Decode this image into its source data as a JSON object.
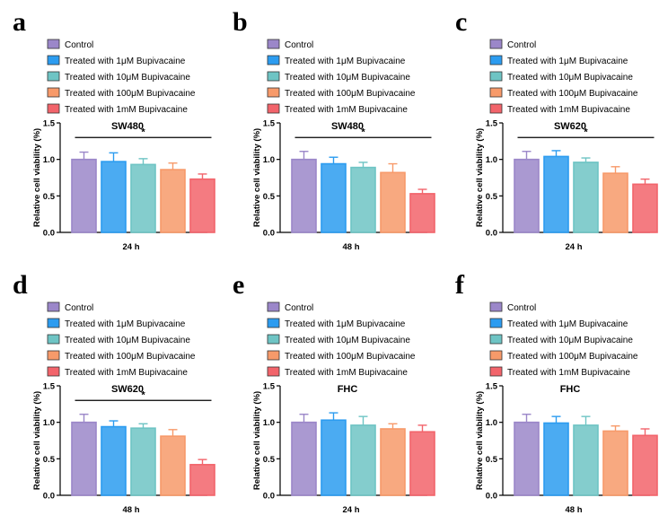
{
  "colors": {
    "Control": "#9b87c9",
    "Treated with 1μM Bupivacaine": "#2c9cf0",
    "Treated with 10μM Bupivacaine": "#6ec4c4",
    "Treated with 100μM Bupivacaine": "#f79a6a",
    "Treated with 1mM Bupivacaine": "#f2646b"
  },
  "chart_data": [
    {
      "panel": "a",
      "type": "bar",
      "title": "SW480",
      "xlabel": "24 h",
      "ylabel": "Relative cell viability (%)",
      "ylim": [
        0,
        1.5
      ],
      "yticks": [
        "0.0",
        "0.5",
        "1.0",
        "1.5"
      ],
      "significance": "*",
      "series": [
        {
          "name": "Control",
          "value": 1.0,
          "error": 0.1
        },
        {
          "name": "Treated with 1μM Bupivacaine",
          "value": 0.97,
          "error": 0.12
        },
        {
          "name": "Treated with 10μM Bupivacaine",
          "value": 0.93,
          "error": 0.08
        },
        {
          "name": "Treated with 100μM Bupivacaine",
          "value": 0.86,
          "error": 0.09
        },
        {
          "name": "Treated with 1mM Bupivacaine",
          "value": 0.73,
          "error": 0.07
        }
      ]
    },
    {
      "panel": "b",
      "type": "bar",
      "title": "SW480",
      "xlabel": "48 h",
      "ylabel": "Relative cell viability (%)",
      "ylim": [
        0,
        1.5
      ],
      "yticks": [
        "0.0",
        "0.5",
        "1.0",
        "1.5"
      ],
      "significance": "*",
      "series": [
        {
          "name": "Control",
          "value": 1.0,
          "error": 0.11
        },
        {
          "name": "Treated with 1μM Bupivacaine",
          "value": 0.94,
          "error": 0.09
        },
        {
          "name": "Treated with 10μM Bupivacaine",
          "value": 0.89,
          "error": 0.07
        },
        {
          "name": "Treated with 100μM Bupivacaine",
          "value": 0.82,
          "error": 0.12
        },
        {
          "name": "Treated with 1mM Bupivacaine",
          "value": 0.53,
          "error": 0.06
        }
      ]
    },
    {
      "panel": "c",
      "type": "bar",
      "title": "SW620",
      "xlabel": "24 h",
      "ylabel": "Relative cell viability (%)",
      "ylim": [
        0,
        1.5
      ],
      "yticks": [
        "0.0",
        "0.5",
        "1.0",
        "1.5"
      ],
      "significance": "*",
      "series": [
        {
          "name": "Control",
          "value": 1.0,
          "error": 0.11
        },
        {
          "name": "Treated with 1μM Bupivacaine",
          "value": 1.04,
          "error": 0.08
        },
        {
          "name": "Treated with 10μM Bupivacaine",
          "value": 0.96,
          "error": 0.06
        },
        {
          "name": "Treated with 100μM Bupivacaine",
          "value": 0.81,
          "error": 0.09
        },
        {
          "name": "Treated with 1mM Bupivacaine",
          "value": 0.66,
          "error": 0.07
        }
      ]
    },
    {
      "panel": "d",
      "type": "bar",
      "title": "SW620",
      "xlabel": "48 h",
      "ylabel": "Relative cell viability (%)",
      "ylim": [
        0,
        1.5
      ],
      "yticks": [
        "0.0",
        "0.5",
        "1.0",
        "1.5"
      ],
      "significance": "*",
      "series": [
        {
          "name": "Control",
          "value": 1.0,
          "error": 0.11
        },
        {
          "name": "Treated with 1μM Bupivacaine",
          "value": 0.94,
          "error": 0.08
        },
        {
          "name": "Treated with 10μM Bupivacaine",
          "value": 0.92,
          "error": 0.06
        },
        {
          "name": "Treated with 100μM Bupivacaine",
          "value": 0.81,
          "error": 0.09
        },
        {
          "name": "Treated with 1mM Bupivacaine",
          "value": 0.42,
          "error": 0.07
        }
      ]
    },
    {
      "panel": "e",
      "type": "bar",
      "title": "FHC",
      "xlabel": "24 h",
      "ylabel": "Relative cell viability (%)",
      "ylim": [
        0,
        1.5
      ],
      "yticks": [
        "0.0",
        "0.5",
        "1.0",
        "1.5"
      ],
      "significance": "",
      "series": [
        {
          "name": "Control",
          "value": 1.0,
          "error": 0.11
        },
        {
          "name": "Treated with 1μM Bupivacaine",
          "value": 1.03,
          "error": 0.1
        },
        {
          "name": "Treated with 10μM Bupivacaine",
          "value": 0.96,
          "error": 0.12
        },
        {
          "name": "Treated with 100μM Bupivacaine",
          "value": 0.91,
          "error": 0.07
        },
        {
          "name": "Treated with 1mM Bupivacaine",
          "value": 0.87,
          "error": 0.09
        }
      ]
    },
    {
      "panel": "f",
      "type": "bar",
      "title": "FHC",
      "xlabel": "48 h",
      "ylabel": "Relative cell viability (%)",
      "ylim": [
        0,
        1.5
      ],
      "yticks": [
        "0.0",
        "0.5",
        "1.0",
        "1.5"
      ],
      "significance": "",
      "series": [
        {
          "name": "Control",
          "value": 1.0,
          "error": 0.11
        },
        {
          "name": "Treated with 1μM Bupivacaine",
          "value": 0.99,
          "error": 0.09
        },
        {
          "name": "Treated with 10μM Bupivacaine",
          "value": 0.96,
          "error": 0.12
        },
        {
          "name": "Treated with 100μM Bupivacaine",
          "value": 0.88,
          "error": 0.07
        },
        {
          "name": "Treated with 1mM Bupivacaine",
          "value": 0.82,
          "error": 0.09
        }
      ]
    }
  ]
}
